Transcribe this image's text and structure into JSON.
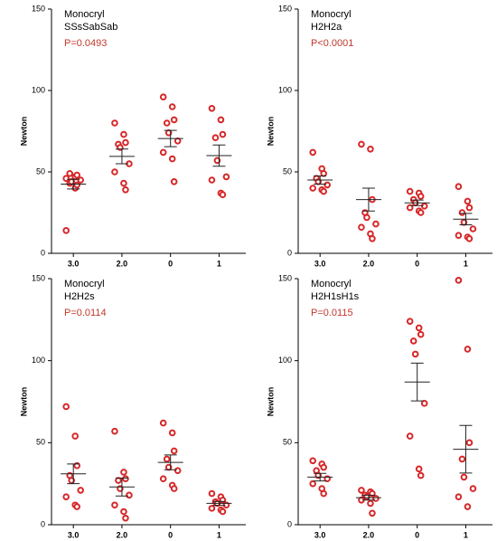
{
  "chart_data": [
    {
      "type": "dot",
      "title": "Monocryl",
      "subtitle": "SSsSabSab",
      "annotation": "P=0.0493",
      "ylabel": "Newton",
      "categories": [
        "3.0",
        "2.0",
        "0",
        "1"
      ],
      "ylim": [
        0,
        150
      ],
      "yticks": [
        0,
        50,
        100,
        150
      ],
      "color": "#d62728",
      "groups": [
        {
          "values": [
            14,
            40,
            42,
            43,
            44,
            45,
            46,
            47,
            48,
            49
          ],
          "mean": 42.5,
          "sem": 3
        },
        {
          "values": [
            80,
            73,
            68,
            67,
            65,
            55,
            50,
            43,
            39
          ],
          "mean": 59.5,
          "sem": 4.5
        },
        {
          "values": [
            96,
            90,
            82,
            80,
            74,
            69,
            62,
            58,
            44
          ],
          "mean": 70.5,
          "sem": 5
        },
        {
          "values": [
            89,
            82,
            73,
            71,
            57,
            47,
            45,
            37,
            36
          ],
          "mean": 60,
          "sem": 6.5
        }
      ]
    },
    {
      "type": "dot",
      "title": "Monocryl",
      "subtitle": "H2H2a",
      "annotation": "P<0.0001",
      "ylabel": "Newton",
      "categories": [
        "3.0",
        "2.0",
        "0",
        "1"
      ],
      "ylim": [
        0,
        150
      ],
      "yticks": [
        0,
        50,
        100,
        150
      ],
      "color": "#d62728",
      "groups": [
        {
          "values": [
            62,
            52,
            49,
            46,
            44,
            42,
            40,
            39,
            38
          ],
          "mean": 45,
          "sem": 2.5
        },
        {
          "values": [
            67,
            64,
            33,
            25,
            22,
            18,
            16,
            12,
            9
          ],
          "mean": 33,
          "sem": 7
        },
        {
          "values": [
            38,
            37,
            35,
            33,
            31,
            29,
            28,
            26,
            25
          ],
          "mean": 31,
          "sem": 1.7
        },
        {
          "values": [
            41,
            32,
            28,
            25,
            19,
            15,
            11,
            10,
            9
          ],
          "mean": 21,
          "sem": 3.5
        }
      ]
    },
    {
      "type": "dot",
      "title": "Monocryl",
      "subtitle": "H2H2s",
      "annotation": "P=0.0114",
      "ylabel": "Newton",
      "categories": [
        "3.0",
        "2.0",
        "0",
        "1"
      ],
      "ylim": [
        0,
        150
      ],
      "yticks": [
        0,
        50,
        100,
        150
      ],
      "color": "#d62728",
      "groups": [
        {
          "values": [
            72,
            54,
            36,
            30,
            27,
            21,
            17,
            12,
            11
          ],
          "mean": 31,
          "sem": 6
        },
        {
          "values": [
            57,
            32,
            28,
            27,
            22,
            18,
            12,
            8,
            4
          ],
          "mean": 23,
          "sem": 5.5
        },
        {
          "values": [
            62,
            56,
            45,
            40,
            35,
            33,
            28,
            24,
            22
          ],
          "mean": 38,
          "sem": 4.5
        },
        {
          "values": [
            19,
            17,
            15,
            14,
            13,
            12,
            10,
            9,
            8
          ],
          "mean": 13,
          "sem": 1.2
        }
      ]
    },
    {
      "type": "dot",
      "title": "Monocryl",
      "subtitle": "H2H1sH1s",
      "annotation": "P=0.0115",
      "ylabel": "Newton",
      "categories": [
        "3.0",
        "2.0",
        "0",
        "1"
      ],
      "ylim": [
        0,
        150
      ],
      "yticks": [
        0,
        50,
        100,
        150
      ],
      "color": "#d62728",
      "groups": [
        {
          "values": [
            39,
            37,
            35,
            33,
            30,
            28,
            25,
            22,
            19
          ],
          "mean": 29,
          "sem": 2.3
        },
        {
          "values": [
            21,
            20,
            19,
            18,
            17,
            16,
            15,
            13,
            7
          ],
          "mean": 16.5,
          "sem": 1.5
        },
        {
          "values": [
            124,
            120,
            116,
            112,
            104,
            74,
            54,
            34,
            30
          ],
          "mean": 87,
          "sem": 11.5
        },
        {
          "values": [
            149,
            107,
            50,
            40,
            29,
            22,
            17,
            11
          ],
          "mean": 46,
          "sem": 14.5
        }
      ]
    }
  ]
}
